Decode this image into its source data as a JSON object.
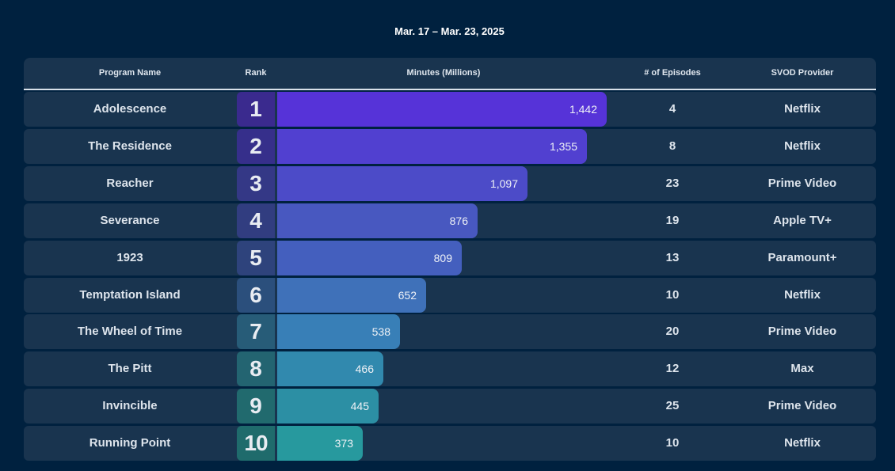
{
  "header": {
    "date_range": "Mar. 17 – Mar. 23, 2025"
  },
  "columns": {
    "program_name": "Program Name",
    "rank": "Rank",
    "minutes": "Minutes (Millions)",
    "episodes": "# of Episodes",
    "provider": "SVOD Provider"
  },
  "chart_data": {
    "type": "bar",
    "orientation": "horizontal",
    "value_unit": "Minutes (Millions)",
    "categories": [
      "Adolescence",
      "The Residence",
      "Reacher",
      "Severance",
      "1923",
      "Temptation Island",
      "The Wheel of Time",
      "The Pitt",
      "Invincible",
      "Running Point"
    ],
    "values": [
      1442,
      1355,
      1097,
      876,
      809,
      652,
      538,
      466,
      445,
      373
    ],
    "value_labels": [
      "1,442",
      "1,355",
      "1,097",
      "876",
      "809",
      "652",
      "538",
      "466",
      "445",
      "373"
    ],
    "ranks": [
      "1",
      "2",
      "3",
      "4",
      "5",
      "6",
      "7",
      "8",
      "9",
      "10"
    ],
    "episodes": [
      "4",
      "8",
      "23",
      "19",
      "13",
      "10",
      "20",
      "12",
      "25",
      "10"
    ],
    "providers": [
      "Netflix",
      "Netflix",
      "Prime Video",
      "Apple TV+",
      "Paramount+",
      "Netflix",
      "Prime Video",
      "Max",
      "Prime Video",
      "Netflix"
    ],
    "bar_colors": [
      "#5633d8",
      "#5140d0",
      "#4c4bc8",
      "#4858c0",
      "#445fbe",
      "#3f71b9",
      "#387fb7",
      "#3189ae",
      "#2c8fa4",
      "#27999e"
    ],
    "rank_colors": [
      "#3a2a8e",
      "#362f8b",
      "#343886",
      "#313d80",
      "#2e437c",
      "#2b4f7c",
      "#275c78",
      "#236471",
      "#216a6e",
      "#1f6b6c"
    ]
  }
}
